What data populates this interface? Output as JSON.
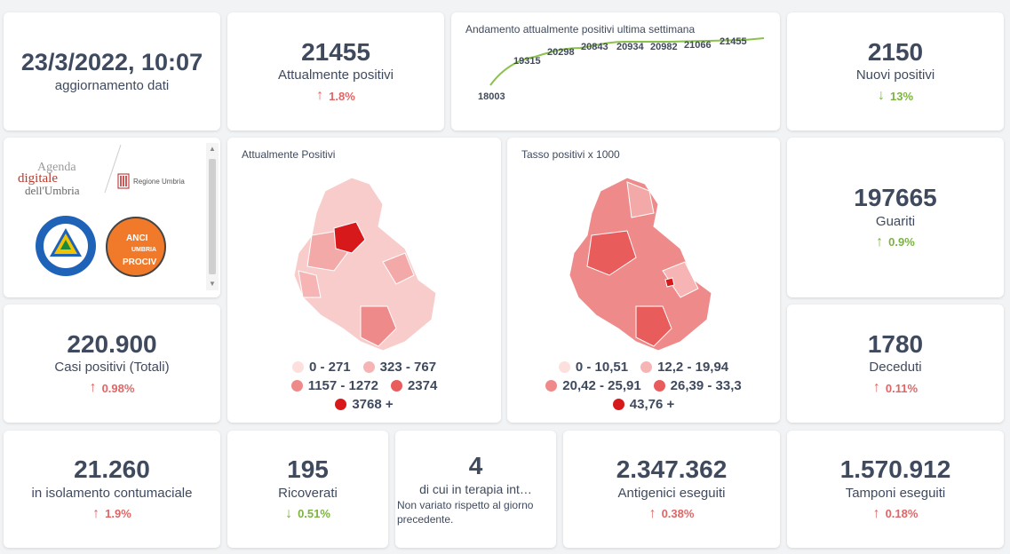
{
  "update": {
    "datetime": "23/3/2022, 10:07",
    "label": "aggiornamento dati"
  },
  "attualmente_positivi": {
    "value": "21455",
    "label": "Attualmente positivi",
    "delta": "1.8%",
    "dir": "up"
  },
  "trend": {
    "title": "Andamento attualmente positivi ultima settimana",
    "points": [
      "18003",
      "19315",
      "20298",
      "20843",
      "20934",
      "20982",
      "21066",
      "21455"
    ]
  },
  "nuovi_positivi": {
    "value": "2150",
    "label": "Nuovi positivi",
    "delta": "13%",
    "dir": "down"
  },
  "logos": {
    "agenda_line1": "Agenda",
    "agenda_line2": "digitale",
    "agenda_line3": "dell'Umbria",
    "regione": "Regione Umbria",
    "protezione": "Protezione Civile",
    "protezione_sub": "Regione Umbria",
    "anci_line1": "ANCI",
    "anci_line2": "UMBRIA",
    "anci_line3": "PROCIV"
  },
  "map1": {
    "title": "Attualmente Positivi",
    "legend": [
      "0 - 271",
      "323 - 767",
      "1157 - 1272",
      "2374",
      "3768 +"
    ],
    "colors": [
      "#fde0dd",
      "#f7b4b4",
      "#ef8a8a",
      "#e85c5c",
      "#d7191c"
    ]
  },
  "map2": {
    "title": "Tasso positivi x 1000",
    "legend": [
      "0 - 10,51",
      "12,2 - 19,94",
      "20,42 - 25,91",
      "26,39 - 33,3",
      "43,76 +"
    ],
    "colors": [
      "#fde0dd",
      "#f7b4b4",
      "#ef8a8a",
      "#e85c5c",
      "#d7191c"
    ]
  },
  "guariti": {
    "value": "197665",
    "label": "Guariti",
    "delta": "0.9%",
    "dir": "up"
  },
  "casi_totali": {
    "value": "220.900",
    "label": "Casi positivi (Totali)",
    "delta": "0.98%",
    "dir": "up"
  },
  "deceduti": {
    "value": "1780",
    "label": "Deceduti",
    "delta": "0.11%",
    "dir": "up"
  },
  "isolamento": {
    "value": "21.260",
    "label": "in isolamento contumaciale",
    "delta": "1.9%",
    "dir": "up"
  },
  "ricoverati": {
    "value": "195",
    "label": "Ricoverati",
    "delta": "0.51%",
    "dir": "down"
  },
  "terapia": {
    "value": "4",
    "label": "di cui in terapia int…",
    "note": "Non variato rispetto al giorno precedente."
  },
  "antigenici": {
    "value": "2.347.362",
    "label": "Antigenici eseguiti",
    "delta": "0.38%",
    "dir": "up"
  },
  "tamponi": {
    "value": "1.570.912",
    "label": "Tamponi eseguiti",
    "delta": "0.18%",
    "dir": "up"
  },
  "icons": {
    "up": "↑",
    "down": "↓"
  },
  "colors": {
    "up": "#e06666",
    "down": "#7cb342",
    "trend_line": "#8bc34a",
    "text": "#3f4a5e"
  }
}
